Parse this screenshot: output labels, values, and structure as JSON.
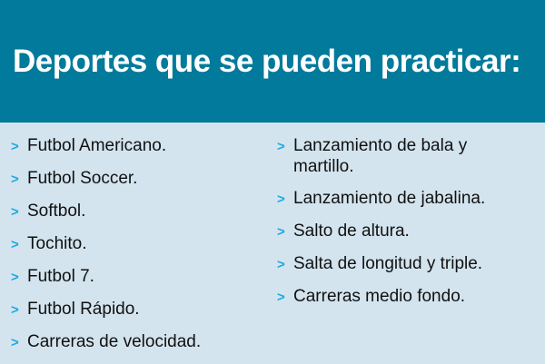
{
  "header": {
    "title": "Deportes que se pueden practicar:"
  },
  "colors": {
    "header_bg": "#027a9b",
    "body_bg": "#d3e4ee",
    "bullet": "#1aa9e0"
  },
  "bullet_icon": "chevron-right",
  "left_items": [
    "Futbol Americano.",
    "Futbol Soccer.",
    "Softbol.",
    "Tochito.",
    "Futbol 7.",
    "Futbol Rápido.",
    "Carreras de velocidad."
  ],
  "right_items": [
    "Lanzamiento de bala y martillo.",
    "Lanzamiento de jabalina.",
    "Salto de altura.",
    "Salta de longitud y triple.",
    "Carreras medio fondo."
  ]
}
